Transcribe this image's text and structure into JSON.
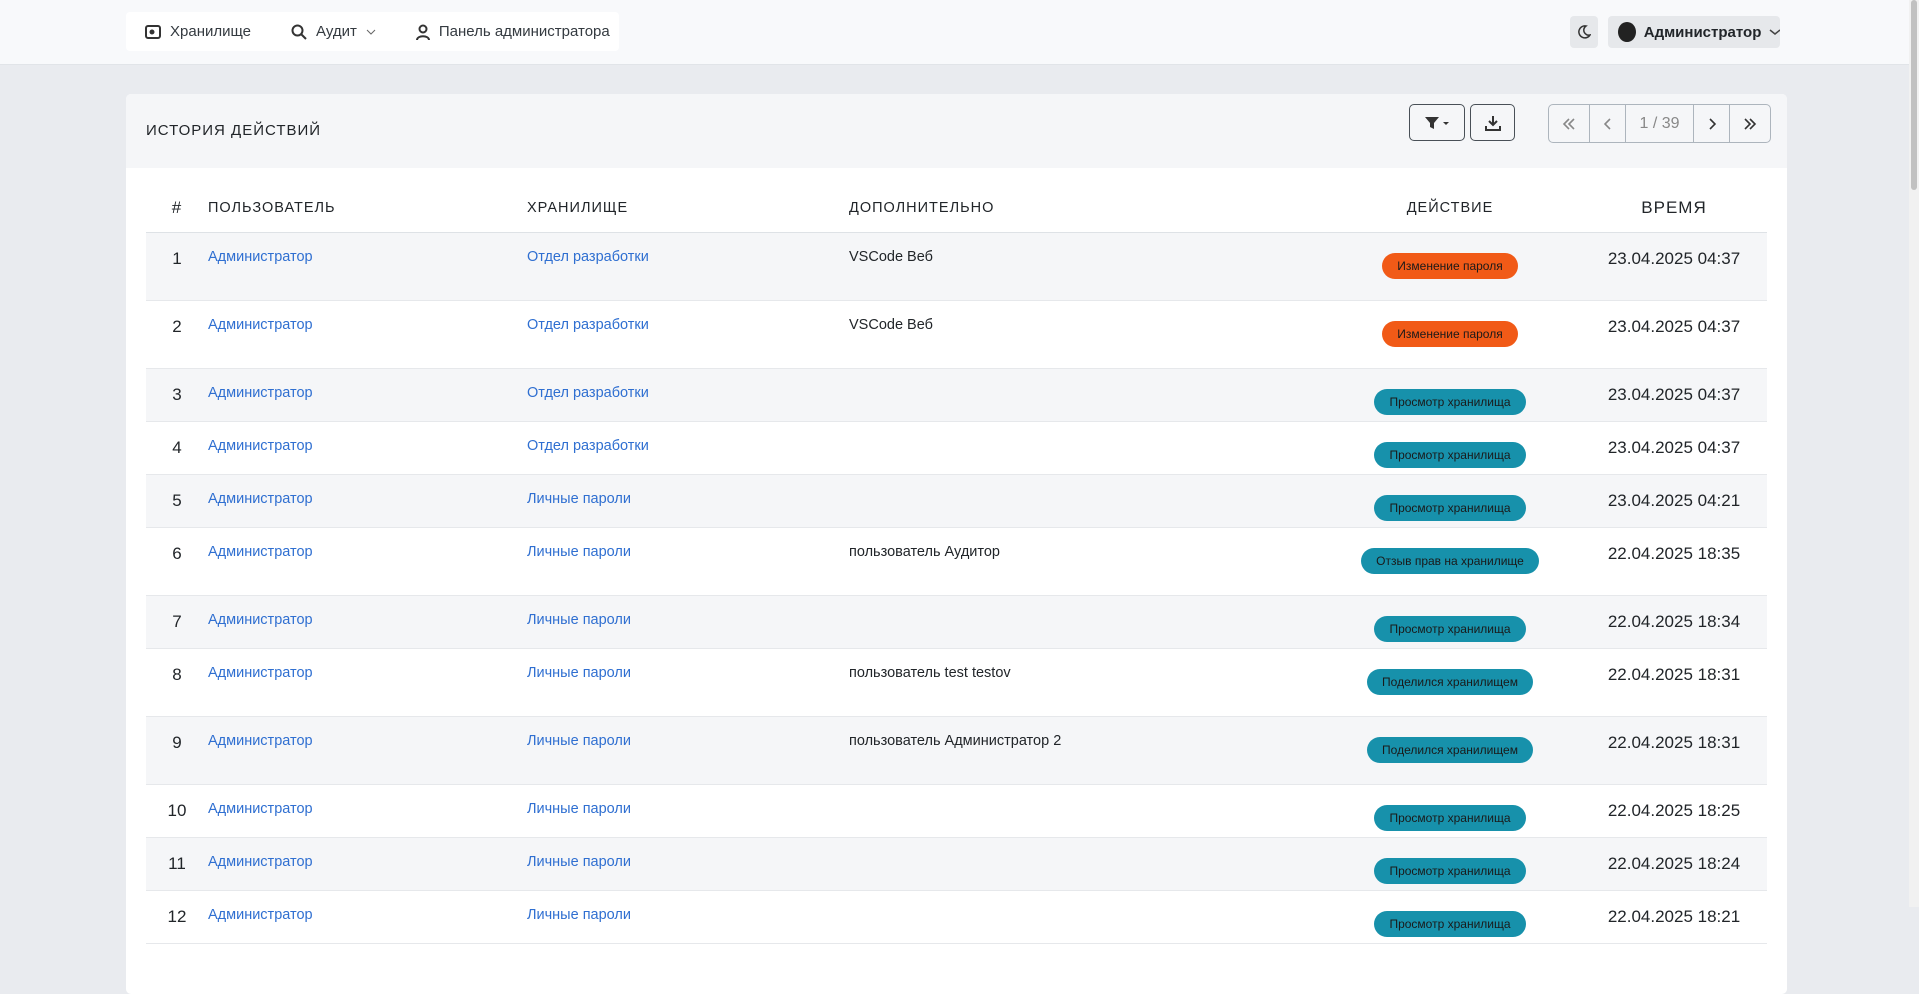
{
  "nav": {
    "items": [
      "Хранилище",
      "Аудит",
      "Панель администратора"
    ],
    "user": "Администратор"
  },
  "card": {
    "title": "ИСТОРИЯ ДЕЙСТВИЙ",
    "pagination": "1 / 39"
  },
  "table": {
    "headers": [
      "#",
      "ПОЛЬЗОВАТЕЛЬ",
      "ХРАНИЛИЩЕ",
      "ДОПОЛНИТЕЛЬНО",
      "ДЕЙСТВИЕ",
      "ВРЕМЯ"
    ],
    "rows": [
      {
        "n": "1",
        "user": "Администратор",
        "vault": "Отдел разработки",
        "extra": "VSCode Веб",
        "action": "Изменение пароля",
        "color": "#f15a17",
        "time": "23.04.2025 04:37"
      },
      {
        "n": "2",
        "user": "Администратор",
        "vault": "Отдел разработки",
        "extra": "VSCode Веб",
        "action": "Изменение пароля",
        "color": "#f15a17",
        "time": "23.04.2025 04:37"
      },
      {
        "n": "3",
        "user": "Администратор",
        "vault": "Отдел разработки",
        "extra": null,
        "action": "Просмотр хранилища",
        "color": "#1791ab",
        "time": "23.04.2025 04:37"
      },
      {
        "n": "4",
        "user": "Администратор",
        "vault": "Отдел разработки",
        "extra": null,
        "action": "Просмотр хранилища",
        "color": "#1791ab",
        "time": "23.04.2025 04:37"
      },
      {
        "n": "5",
        "user": "Администратор",
        "vault": "Личные пароли",
        "extra": null,
        "action": "Просмотр хранилища",
        "color": "#1791ab",
        "time": "23.04.2025 04:21"
      },
      {
        "n": "6",
        "user": "Администратор",
        "vault": "Личные пароли",
        "extra": "пользователь Аудитор",
        "action": "Отзыв прав на хранилище",
        "color": "#1791ab",
        "time": "22.04.2025 18:35"
      },
      {
        "n": "7",
        "user": "Администратор",
        "vault": "Личные пароли",
        "extra": null,
        "action": "Просмотр хранилища",
        "color": "#1791ab",
        "time": "22.04.2025 18:34"
      },
      {
        "n": "8",
        "user": "Администратор",
        "vault": "Личные пароли",
        "extra": "пользователь test testov",
        "action": "Поделился хранилищем",
        "color": "#1791ab",
        "time": "22.04.2025 18:31"
      },
      {
        "n": "9",
        "user": "Администратор",
        "vault": "Личные пароли",
        "extra": "пользователь Администратор 2",
        "action": "Поделился хранилищем",
        "color": "#1791ab",
        "time": "22.04.2025 18:31"
      },
      {
        "n": "10",
        "user": "Администратор",
        "vault": "Личные пароли",
        "extra": null,
        "action": "Просмотр хранилища",
        "color": "#1791ab",
        "time": "22.04.2025 18:25"
      },
      {
        "n": "11",
        "user": "Администратор",
        "vault": "Личные пароли",
        "extra": null,
        "action": "Просмотр хранилища",
        "color": "#1791ab",
        "time": "22.04.2025 18:24"
      },
      {
        "n": "12",
        "user": "Администратор",
        "vault": "Личные пароли",
        "extra": null,
        "action": "Просмотр хранилища",
        "color": "#1791ab",
        "time": "22.04.2025 18:21"
      }
    ]
  }
}
